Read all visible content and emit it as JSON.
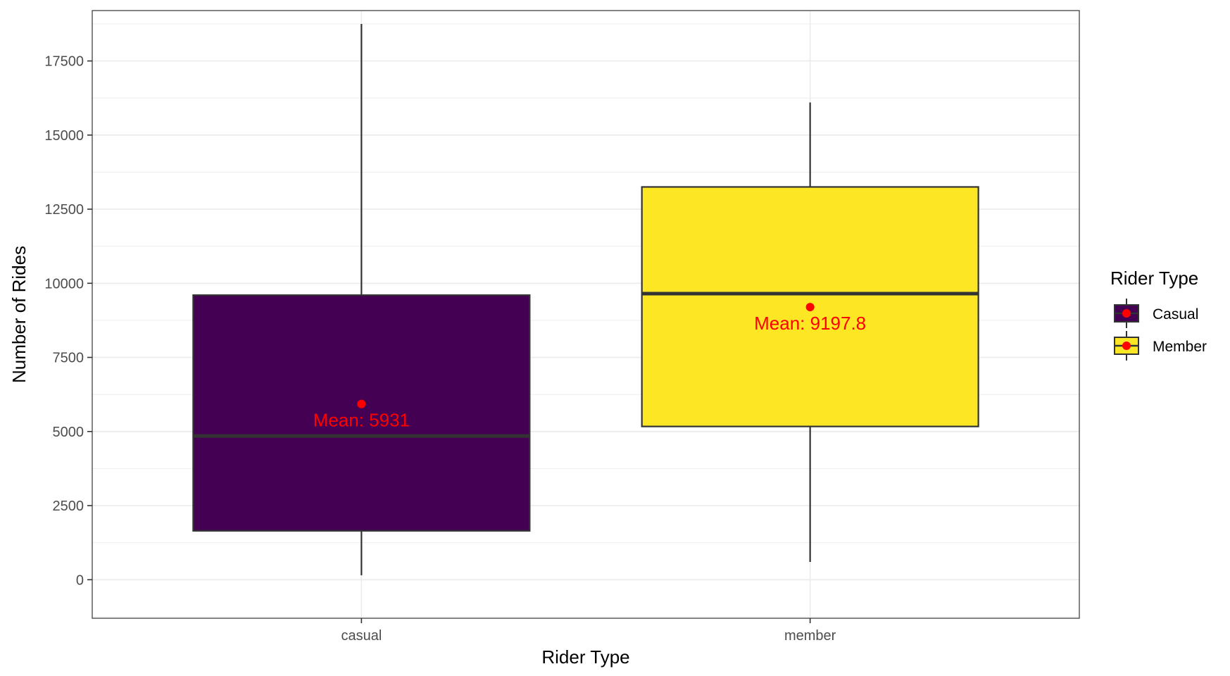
{
  "chart_data": {
    "type": "boxplot",
    "title": "",
    "xlabel": "Rider Type",
    "ylabel": "Number of Rides",
    "categories": [
      "casual",
      "member"
    ],
    "ylim": [
      -1300,
      19200
    ],
    "y_ticks": [
      0,
      2500,
      5000,
      7500,
      10000,
      12500,
      15000,
      17500
    ],
    "grid": true,
    "series": [
      {
        "category": "casual",
        "min": 150,
        "q1": 1650,
        "median": 4850,
        "q3": 9600,
        "max": 18750,
        "mean": 5931,
        "mean_label": "Mean: 5931",
        "fill": "#440154"
      },
      {
        "category": "member",
        "min": 600,
        "q1": 5170,
        "median": 9650,
        "q3": 13250,
        "max": 16100,
        "mean": 9197.8,
        "mean_label": "Mean: 9197.8",
        "fill": "#FDE725"
      }
    ],
    "legend": {
      "title": "Rider Type",
      "position": "right",
      "entries": [
        {
          "label": "Casual",
          "fill": "#440154"
        },
        {
          "label": "Member",
          "fill": "#FDE725"
        }
      ]
    },
    "colors": {
      "mean_point": "#FF0000",
      "box_stroke": "#333333",
      "grid": "#ebebeb",
      "panel_border": "#333333"
    }
  }
}
